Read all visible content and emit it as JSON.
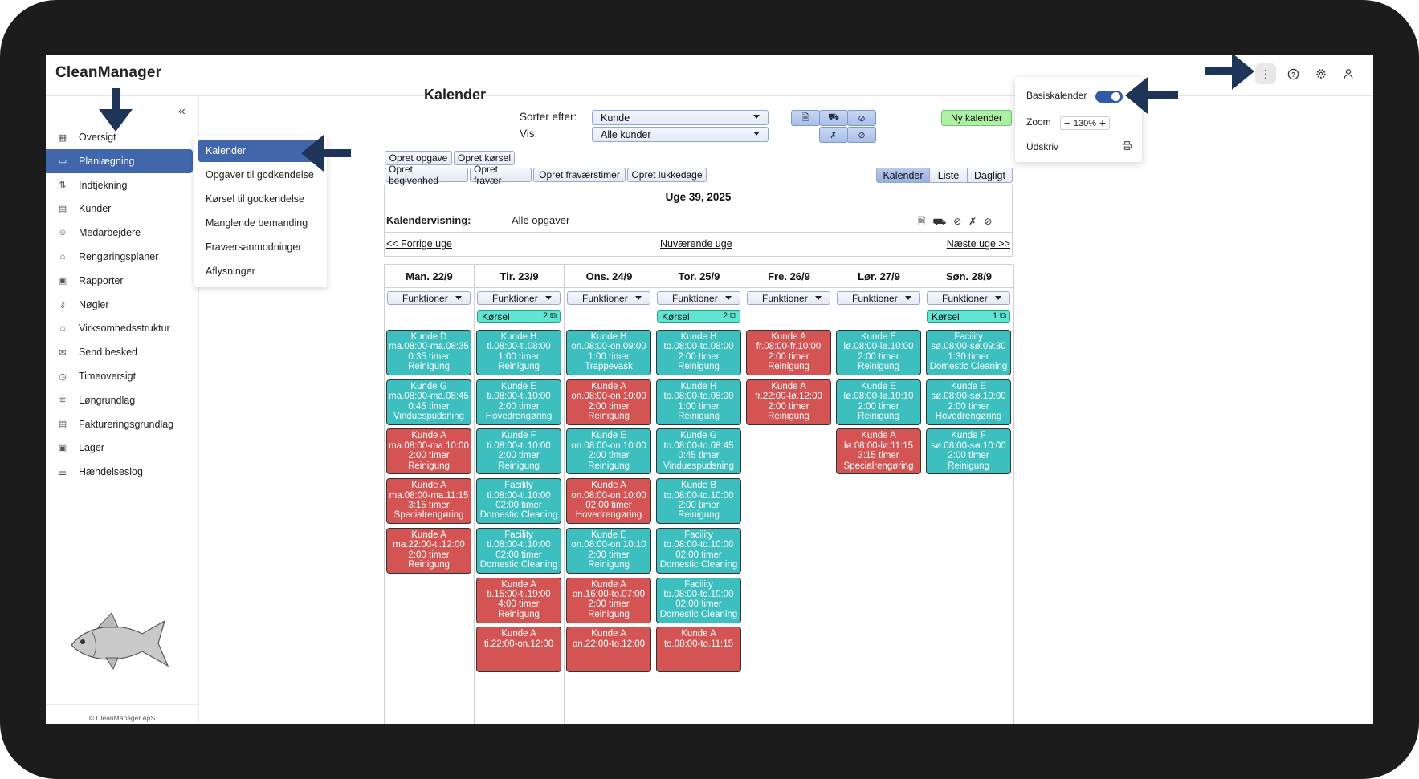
{
  "app": {
    "brand": "CleanManager"
  },
  "header_icons": [
    "more-vertical-icon",
    "help-icon",
    "settings-gear-icon",
    "user-icon"
  ],
  "sidebar": {
    "collapse_icon": "«",
    "items": [
      {
        "label": "Oversigt",
        "icon": "grid-icon"
      },
      {
        "label": "Planlægning",
        "icon": "calendar-icon",
        "active": true
      },
      {
        "label": "Indtjekning",
        "icon": "arrows-up-down-icon"
      },
      {
        "label": "Kunder",
        "icon": "building-icon"
      },
      {
        "label": "Medarbejdere",
        "icon": "users-icon"
      },
      {
        "label": "Rengøringsplaner",
        "icon": "spray-icon"
      },
      {
        "label": "Rapporter",
        "icon": "clipboard-icon"
      },
      {
        "label": "Nøgler",
        "icon": "key-icon"
      },
      {
        "label": "Virksomhedsstruktur",
        "icon": "home-icon"
      },
      {
        "label": "Send besked",
        "icon": "mail-icon"
      },
      {
        "label": "Timeoversigt",
        "icon": "clock-icon"
      },
      {
        "label": "Løngrundlag",
        "icon": "money-icon"
      },
      {
        "label": "Faktureringsgrundlag",
        "icon": "invoice-icon"
      },
      {
        "label": "Lager",
        "icon": "box-icon"
      },
      {
        "label": "Hændelseslog",
        "icon": "list-icon"
      }
    ],
    "copyright": "© CleanManager ApS"
  },
  "submenu": {
    "items": [
      "Kalender",
      "Opgaver til godkendelse",
      "Kørsel til godkendelse",
      "Manglende bemanding",
      "Fraværsanmodninger",
      "Aflysninger"
    ]
  },
  "main": {
    "title": "Kalender",
    "sort_label": "Sorter efter:",
    "sort_value": "Kunde",
    "show_label": "Vis:",
    "show_value": "Alle kunder",
    "new_calendar": "Ny kalender",
    "actions_row1": [
      "Opret opgave",
      "Opret kørsel"
    ],
    "actions_row2": [
      "Opret begivenhed",
      "Opret fravær",
      "Opret fraværstimer",
      "Opret lukkedage"
    ],
    "views": [
      "Kalender",
      "Liste",
      "Dagligt"
    ],
    "week_title": "Uge 39, 2025",
    "calview_label": "Kalendervisning:",
    "calview_value": "Alle opgaver",
    "prev_week": "<< Forrige uge",
    "current_week": "Nuværende uge",
    "next_week": "Næste uge >>",
    "functions_label": "Funktioner",
    "korsel_label": "Kørsel"
  },
  "right_menu": {
    "basis_label": "Basiskalender",
    "basis_on": true,
    "zoom_label": "Zoom",
    "zoom_minus": "−",
    "zoom_value": "130%",
    "zoom_plus": "+",
    "print_label": "Udskriv"
  },
  "colors": {
    "teal": "#3ebfbf",
    "red": "#d45454",
    "primary": "#4166ab",
    "arrow": "#1f3557"
  },
  "days": [
    {
      "header": "Man. 22/9",
      "korsel": null,
      "events": [
        {
          "lines": [
            "Kunde D",
            "ma.08:00-ma.08:35",
            "0:35 timer",
            "Reinigung"
          ],
          "color": "teal"
        },
        {
          "lines": [
            "Kunde G",
            "ma.08:00-ma.08:45",
            "0:45 timer",
            "Vinduespudsning"
          ],
          "color": "teal"
        },
        {
          "lines": [
            "Kunde A",
            "ma.08:00-ma.10:00",
            "2:00 timer",
            "Reinigung"
          ],
          "color": "red"
        },
        {
          "lines": [
            "Kunde A",
            "ma.08:00-ma.11:15",
            "3:15 timer",
            "Specialrengøring"
          ],
          "color": "red"
        },
        {
          "lines": [
            "Kunde A",
            "ma.22:00-ti.12:00",
            "2:00 timer",
            "Reinigung"
          ],
          "color": "red"
        }
      ]
    },
    {
      "header": "Tir. 23/9",
      "korsel": "2",
      "events": [
        {
          "lines": [
            "Kunde H",
            "ti.08:00-ti.08:00",
            "1:00 timer",
            "Reinigung"
          ],
          "color": "teal"
        },
        {
          "lines": [
            "Kunde E",
            "ti.08:00-ti.10:00",
            "2:00 timer",
            "Hovedrengøring"
          ],
          "color": "teal"
        },
        {
          "lines": [
            "Kunde F",
            "ti.08:00-ti.10:00",
            "2:00 timer",
            "Reinigung"
          ],
          "color": "teal"
        },
        {
          "lines": [
            "Facility",
            "ti.08:00-ti.10:00",
            "02:00 timer",
            "Domestic Cleaning"
          ],
          "color": "teal"
        },
        {
          "lines": [
            "Facility",
            "ti.08:00-ti.10:00",
            "02:00 timer",
            "Domestic Cleaning"
          ],
          "color": "teal"
        },
        {
          "lines": [
            "Kunde A",
            "ti.15:00-ti.19:00",
            "4:00 timer",
            "Reinigung"
          ],
          "color": "red"
        },
        {
          "lines": [
            "Kunde A",
            "ti.22:00-on.12:00",
            "",
            ""
          ],
          "color": "red"
        }
      ]
    },
    {
      "header": "Ons. 24/9",
      "korsel": null,
      "events": [
        {
          "lines": [
            "Kunde H",
            "on.08:00-on.09:00",
            "1:00 timer",
            "Trappevask"
          ],
          "color": "teal"
        },
        {
          "lines": [
            "Kunde A",
            "on.08:00-on.10:00",
            "2:00 timer",
            "Reinigung"
          ],
          "color": "red"
        },
        {
          "lines": [
            "Kunde E",
            "on.08:00-on.10:00",
            "2:00 timer",
            "Reinigung"
          ],
          "color": "teal"
        },
        {
          "lines": [
            "Kunde A",
            "on.08:00-on.10:00",
            "02:00 timer",
            "Hovedrengøring"
          ],
          "color": "red"
        },
        {
          "lines": [
            "Kunde E",
            "on.08:00-on.10:10",
            "2:00 timer",
            "Reinigung"
          ],
          "color": "teal"
        },
        {
          "lines": [
            "Kunde A",
            "on.16:00-to.07:00",
            "2:00 timer",
            "Reinigung"
          ],
          "color": "red"
        },
        {
          "lines": [
            "Kunde A",
            "on.22:00-to.12:00",
            "",
            ""
          ],
          "color": "red"
        }
      ]
    },
    {
      "header": "Tor. 25/9",
      "korsel": "2",
      "events": [
        {
          "lines": [
            "Kunde H",
            "to.08:00-to.08:00",
            "2:00 timer",
            "Reinigung"
          ],
          "color": "teal"
        },
        {
          "lines": [
            "Kunde H",
            "to.08:00-to.08:00",
            "1:00 timer",
            "Reinigung"
          ],
          "color": "teal"
        },
        {
          "lines": [
            "Kunde G",
            "to.08:00-to.08:45",
            "0:45 timer",
            "Vinduespudsning"
          ],
          "color": "teal"
        },
        {
          "lines": [
            "Kunde B",
            "to.08:00-to.10:00",
            "2:00 timer",
            "Reinigung"
          ],
          "color": "teal"
        },
        {
          "lines": [
            "Facility",
            "to.08:00-to.10:00",
            "02:00 timer",
            "Domestic Cleaning"
          ],
          "color": "teal"
        },
        {
          "lines": [
            "Facility",
            "to.08:00-to.10:00",
            "02:00 timer",
            "Domestic Cleaning"
          ],
          "color": "teal"
        },
        {
          "lines": [
            "Kunde A",
            "to.08:00-to.11:15",
            "",
            ""
          ],
          "color": "red"
        }
      ]
    },
    {
      "header": "Fre. 26/9",
      "korsel": null,
      "events": [
        {
          "lines": [
            "Kunde A",
            "fr.08:00-fr.10:00",
            "2:00 timer",
            "Reinigung"
          ],
          "color": "red"
        },
        {
          "lines": [
            "Kunde A",
            "fr.22:00-lø.12:00",
            "2:00 timer",
            "Reinigung"
          ],
          "color": "red"
        }
      ]
    },
    {
      "header": "Lør. 27/9",
      "korsel": null,
      "events": [
        {
          "lines": [
            "Kunde E",
            "lø.08:00-lø.10:00",
            "2:00 timer",
            "Reinigung"
          ],
          "color": "teal"
        },
        {
          "lines": [
            "Kunde E",
            "lø.08:00-lø.10:10",
            "2:00 timer",
            "Reinigung"
          ],
          "color": "teal"
        },
        {
          "lines": [
            "Kunde A",
            "lø.08:00-lø.11:15",
            "3:15 timer",
            "Specialrengøring"
          ],
          "color": "red"
        }
      ]
    },
    {
      "header": "Søn. 28/9",
      "korsel": "1",
      "events": [
        {
          "lines": [
            "Facility",
            "sø.08:00-sø.09:30",
            "1:30 timer",
            "Domestic Cleaning"
          ],
          "color": "teal"
        },
        {
          "lines": [
            "Kunde E",
            "sø.08:00-sø.10:00",
            "2:00 timer",
            "Hovedrengøring"
          ],
          "color": "teal"
        },
        {
          "lines": [
            "Kunde F",
            "sø.08:00-sø.10:00",
            "2:00 timer",
            "Reinigung"
          ],
          "color": "teal"
        }
      ]
    }
  ]
}
